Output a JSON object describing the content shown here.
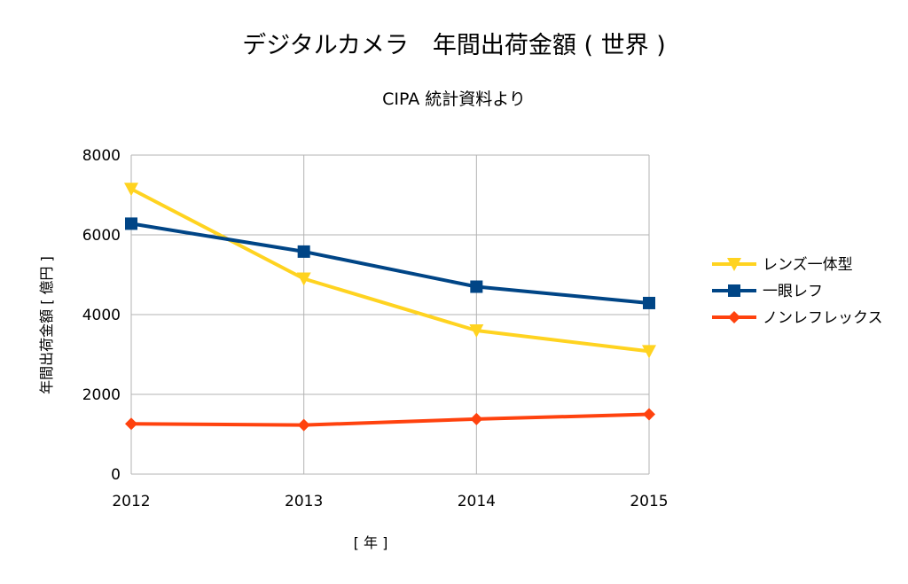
{
  "chart_data": {
    "type": "line",
    "title": "デジタルカメラ　年間出荷金額 ( 世界 )",
    "subtitle": "CIPA 統計資料より",
    "xlabel": "[ 年 ]",
    "ylabel": "年間出荷金額 [ 億円 ]",
    "categories": [
      "2012",
      "2013",
      "2014",
      "2015"
    ],
    "ylim": [
      0,
      8000
    ],
    "yticks": [
      "0",
      "2000",
      "4000",
      "6000",
      "8000"
    ],
    "grid": true,
    "legend_position": "right",
    "series": [
      {
        "name": "レンズ一体型",
        "values": [
          7150,
          4900,
          3600,
          3080
        ],
        "color": "#ffd320",
        "marker": "triangle-down"
      },
      {
        "name": "一眼レフ",
        "values": [
          6280,
          5580,
          4700,
          4290
        ],
        "color": "#004586",
        "marker": "square"
      },
      {
        "name": "ノンレフレックス",
        "values": [
          1260,
          1230,
          1380,
          1500
        ],
        "color": "#ff420e",
        "marker": "diamond"
      }
    ]
  }
}
